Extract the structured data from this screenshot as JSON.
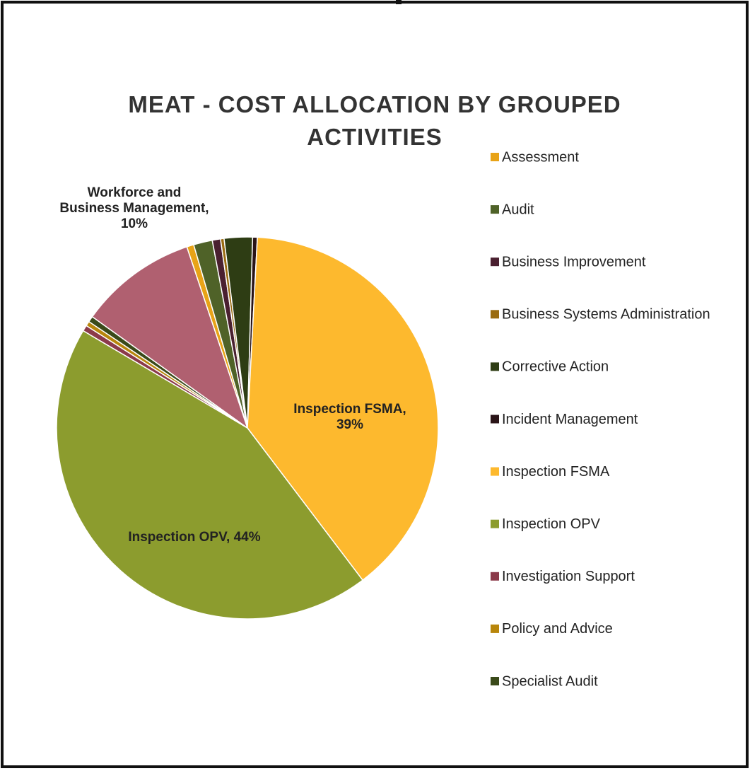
{
  "chart_data": {
    "type": "pie",
    "title": "MEAT - COST ALLOCATION BY GROUPED ACTIVITIES",
    "categories": [
      "Assessment",
      "Audit",
      "Business Improvement",
      "Business Systems Administration",
      "Corrective Action",
      "Incident Management",
      "Inspection FSMA",
      "Inspection OPV",
      "Investigation Support",
      "Policy and Advice",
      "Specialist Audit",
      "Workforce and Business Management"
    ],
    "values": [
      0.6,
      1.6,
      0.7,
      0.3,
      2.4,
      0.4,
      39,
      44,
      0.5,
      0.4,
      0.5,
      10
    ],
    "value_labels": [
      null,
      null,
      null,
      null,
      null,
      null,
      "Inspection FSMA, 39%",
      "Inspection OPV, 44%",
      null,
      null,
      null,
      "Workforce and Business Management, 10%"
    ],
    "colors": [
      "#e8a317",
      "#4f6228",
      "#4a2030",
      "#9a6b10",
      "#2e3d14",
      "#2a1418",
      "#fdb92e",
      "#8c9c2e",
      "#8b3a4a",
      "#b8860b",
      "#3a4a1a",
      "#b06070"
    ],
    "legend": "right"
  }
}
